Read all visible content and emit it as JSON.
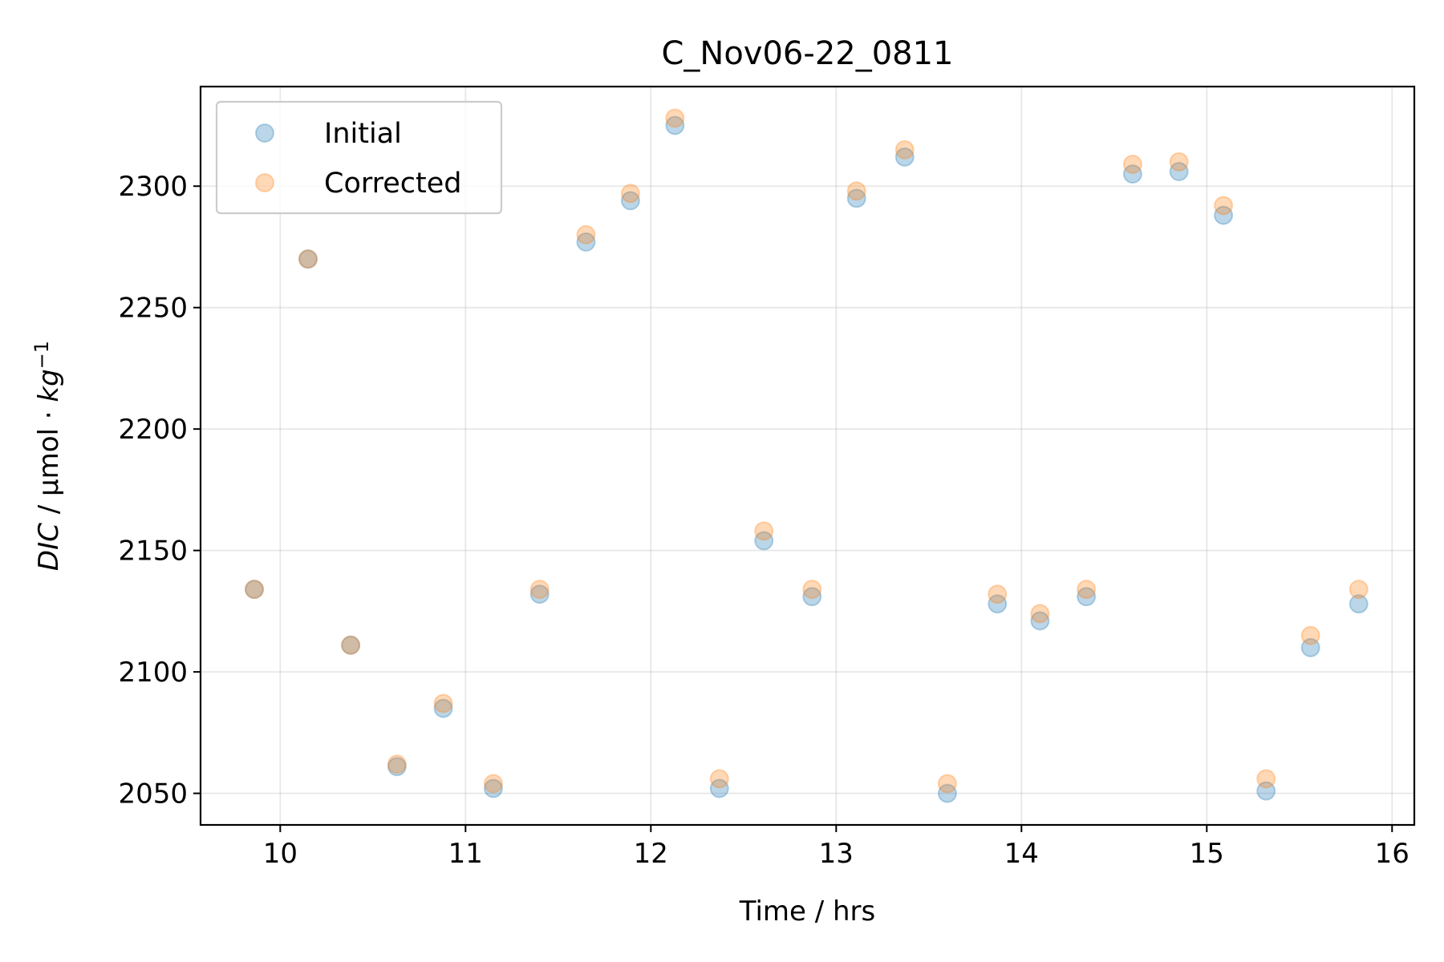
{
  "chart_data": {
    "type": "scatter",
    "title": "C_Nov06-22_0811",
    "xlabel": "Time / hrs",
    "ylabel": {
      "prefix": "DIC",
      "middle": " / µmol · ",
      "unit": "kg",
      "exponent": "−1"
    },
    "xlim": [
      9.57,
      16.12
    ],
    "ylim": [
      2037,
      2341
    ],
    "xticks": [
      10,
      11,
      12,
      13,
      14,
      15,
      16
    ],
    "yticks": [
      2050,
      2100,
      2150,
      2200,
      2250,
      2300
    ],
    "grid": true,
    "legend_position": "top-left",
    "series": [
      {
        "name": "Initial",
        "color": "#1f77b4",
        "x": [
          9.86,
          10.15,
          10.38,
          10.63,
          10.88,
          11.15,
          11.4,
          11.65,
          11.89,
          12.13,
          12.37,
          12.61,
          12.87,
          13.11,
          13.37,
          13.6,
          13.87,
          14.1,
          14.35,
          14.6,
          14.85,
          15.09,
          15.32,
          15.56,
          15.82
        ],
        "values": [
          2134,
          2270,
          2111,
          2061,
          2085,
          2052,
          2132,
          2277,
          2294,
          2325,
          2052,
          2154,
          2131,
          2295,
          2312,
          2050,
          2128,
          2121,
          2131,
          2305,
          2306,
          2288,
          2051,
          2110,
          2128
        ]
      },
      {
        "name": "Corrected",
        "color": "#ff7f0e",
        "x": [
          9.86,
          10.15,
          10.38,
          10.63,
          10.88,
          11.15,
          11.4,
          11.65,
          11.89,
          12.13,
          12.37,
          12.61,
          12.87,
          13.11,
          13.37,
          13.6,
          13.87,
          14.1,
          14.35,
          14.6,
          14.85,
          15.09,
          15.32,
          15.56,
          15.82
        ],
        "values": [
          2134,
          2270,
          2111,
          2062,
          2087,
          2054,
          2134,
          2280,
          2297,
          2328,
          2056,
          2158,
          2134,
          2298,
          2315,
          2054,
          2132,
          2124,
          2134,
          2309,
          2310,
          2292,
          2056,
          2115,
          2134
        ]
      }
    ]
  }
}
